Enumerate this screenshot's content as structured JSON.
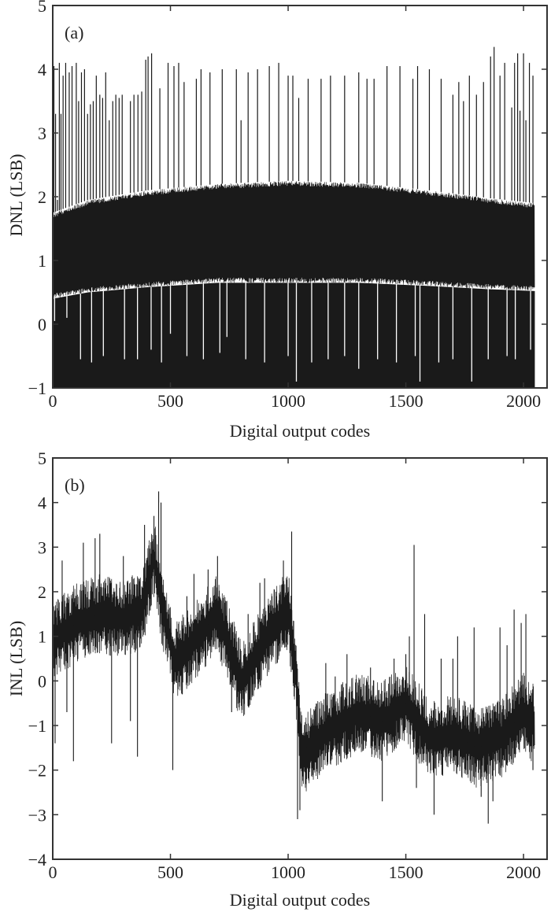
{
  "chart_data": [
    {
      "id": "a",
      "type": "line",
      "panel_label": "(a)",
      "title": "",
      "xlabel": "Digital output codes",
      "ylabel": "DNL (LSB)",
      "xlim": [
        0,
        2100
      ],
      "ylim": [
        -1,
        5
      ],
      "xticks": [
        0,
        500,
        1000,
        1500,
        2000
      ],
      "yticks": [
        -1,
        0,
        1,
        2,
        3,
        4,
        5
      ],
      "grid": false,
      "legend": "none",
      "series": [
        {
          "n_codes": 2048,
          "dense_band": {
            "x": [
              0,
              150,
              400,
              700,
              1000,
              1300,
              1600,
              1850,
              2048
            ],
            "upper": [
              1.75,
              1.95,
              2.1,
              2.2,
              2.25,
              2.22,
              2.1,
              1.98,
              1.9
            ],
            "lower": [
              0.4,
              0.5,
              0.58,
              0.65,
              0.65,
              0.65,
              0.6,
              0.55,
              0.52
            ]
          },
          "spikes_up": [
            [
              5,
              4.05
            ],
            [
              12,
              3.3
            ],
            [
              20,
              1.95
            ],
            [
              28,
              4.1
            ],
            [
              35,
              3.3
            ],
            [
              44,
              3.9
            ],
            [
              55,
              4.1
            ],
            [
              70,
              3.95
            ],
            [
              82,
              4.05
            ],
            [
              100,
              4.1
            ],
            [
              110,
              3.5
            ],
            [
              122,
              3.95
            ],
            [
              135,
              4.0
            ],
            [
              148,
              3.3
            ],
            [
              160,
              3.45
            ],
            [
              172,
              3.5
            ],
            [
              185,
              3.9
            ],
            [
              200,
              3.6
            ],
            [
              212,
              3.55
            ],
            [
              225,
              3.95
            ],
            [
              240,
              3.2
            ],
            [
              255,
              3.5
            ],
            [
              268,
              3.6
            ],
            [
              282,
              3.55
            ],
            [
              295,
              3.6
            ],
            [
              330,
              3.5
            ],
            [
              345,
              3.6
            ],
            [
              362,
              3.6
            ],
            [
              378,
              3.65
            ],
            [
              395,
              4.15
            ],
            [
              405,
              4.2
            ],
            [
              420,
              4.25
            ],
            [
              455,
              3.7
            ],
            [
              490,
              4.1
            ],
            [
              515,
              4.05
            ],
            [
              535,
              4.1
            ],
            [
              558,
              3.8
            ],
            [
              610,
              3.85
            ],
            [
              630,
              4.0
            ],
            [
              668,
              3.95
            ],
            [
              720,
              4.0
            ],
            [
              780,
              4.0
            ],
            [
              800,
              3.2
            ],
            [
              830,
              3.95
            ],
            [
              870,
              4.0
            ],
            [
              920,
              4.05
            ],
            [
              960,
              4.1
            ],
            [
              1000,
              3.9
            ],
            [
              1020,
              3.9
            ],
            [
              1045,
              3.55
            ],
            [
              1085,
              3.85
            ],
            [
              1140,
              3.85
            ],
            [
              1180,
              3.9
            ],
            [
              1240,
              3.9
            ],
            [
              1300,
              3.95
            ],
            [
              1335,
              3.85
            ],
            [
              1365,
              3.85
            ],
            [
              1420,
              4.05
            ],
            [
              1475,
              4.05
            ],
            [
              1530,
              3.85
            ],
            [
              1550,
              4.05
            ],
            [
              1600,
              4.0
            ],
            [
              1650,
              3.85
            ],
            [
              1700,
              3.6
            ],
            [
              1725,
              3.8
            ],
            [
              1745,
              3.5
            ],
            [
              1770,
              3.9
            ],
            [
              1800,
              3.6
            ],
            [
              1830,
              3.8
            ],
            [
              1860,
              4.2
            ],
            [
              1875,
              4.35
            ],
            [
              1900,
              3.9
            ],
            [
              1920,
              4.1
            ],
            [
              1950,
              3.4
            ],
            [
              1962,
              4.1
            ],
            [
              1975,
              4.25
            ],
            [
              1985,
              3.35
            ],
            [
              2000,
              4.25
            ],
            [
              2010,
              3.2
            ],
            [
              2025,
              4.1
            ],
            [
              2040,
              3.9
            ]
          ],
          "spikes_down": [
            [
              8,
              0.05
            ],
            [
              60,
              0.1
            ],
            [
              118,
              -0.55
            ],
            [
              165,
              -0.6
            ],
            [
              215,
              -0.5
            ],
            [
              305,
              -0.55
            ],
            [
              360,
              -0.55
            ],
            [
              418,
              -0.4
            ],
            [
              462,
              -0.6
            ],
            [
              500,
              -0.15
            ],
            [
              570,
              -0.5
            ],
            [
              640,
              -0.55
            ],
            [
              710,
              -0.45
            ],
            [
              740,
              -0.2
            ],
            [
              820,
              -0.55
            ],
            [
              900,
              -0.6
            ],
            [
              1000,
              -0.5
            ],
            [
              1035,
              -0.9
            ],
            [
              1100,
              -0.6
            ],
            [
              1170,
              -0.55
            ],
            [
              1240,
              -0.5
            ],
            [
              1300,
              -0.7
            ],
            [
              1380,
              -0.55
            ],
            [
              1460,
              -0.6
            ],
            [
              1540,
              -0.5
            ],
            [
              1560,
              -0.9
            ],
            [
              1640,
              -0.6
            ],
            [
              1700,
              -0.55
            ],
            [
              1780,
              -0.9
            ],
            [
              1850,
              -0.55
            ],
            [
              1930,
              -0.5
            ],
            [
              1965,
              -0.55
            ],
            [
              2030,
              -0.4
            ]
          ]
        }
      ]
    },
    {
      "id": "b",
      "type": "line",
      "panel_label": "(b)",
      "title": "",
      "xlabel": "Digital output codes",
      "ylabel": "INL (LSB)",
      "xlim": [
        0,
        2100
      ],
      "ylim": [
        -4,
        5
      ],
      "xticks": [
        0,
        500,
        1000,
        1500,
        2000
      ],
      "yticks": [
        -4,
        -3,
        -2,
        -1,
        0,
        1,
        2,
        3,
        4,
        5
      ],
      "grid": false,
      "legend": "none",
      "series": [
        {
          "n_codes": 2048,
          "trend": {
            "x": [
              0,
              100,
              200,
              300,
              380,
              430,
              460,
              520,
              600,
              700,
              760,
              800,
              900,
              1000,
              1030,
              1060,
              1150,
              1300,
              1400,
              1500,
              1600,
              1700,
              1800,
              1900,
              2000,
              2048
            ],
            "y": [
              0.9,
              1.3,
              1.5,
              1.4,
              1.6,
              2.8,
              1.8,
              0.4,
              0.9,
              1.5,
              0.6,
              0.0,
              0.9,
              1.6,
              0.3,
              -1.7,
              -1.2,
              -0.7,
              -0.9,
              -0.5,
              -1.3,
              -1.2,
              -1.5,
              -1.3,
              -0.7,
              -1.0
            ]
          },
          "half_band": 0.9,
          "spikes": [
            [
              10,
              -1.4
            ],
            [
              40,
              2.7
            ],
            [
              60,
              -0.7
            ],
            [
              88,
              -1.8
            ],
            [
              130,
              3.1
            ],
            [
              180,
              3.2
            ],
            [
              200,
              3.3
            ],
            [
              250,
              -1.4
            ],
            [
              300,
              2.8
            ],
            [
              330,
              -0.9
            ],
            [
              360,
              -1.7
            ],
            [
              390,
              3.5
            ],
            [
              430,
              3.7
            ],
            [
              450,
              4.25
            ],
            [
              460,
              4.0
            ],
            [
              510,
              -2.0
            ],
            [
              550,
              -0.3
            ],
            [
              570,
              1.9
            ],
            [
              600,
              2.4
            ],
            [
              660,
              2.5
            ],
            [
              700,
              2.8
            ],
            [
              760,
              -0.7
            ],
            [
              800,
              0.3
            ],
            [
              830,
              1.5
            ],
            [
              880,
              2.2
            ],
            [
              900,
              2.3
            ],
            [
              950,
              1.9
            ],
            [
              980,
              2.7
            ],
            [
              1015,
              3.35
            ],
            [
              1040,
              -3.1
            ],
            [
              1050,
              -2.9
            ],
            [
              1080,
              -1.5
            ],
            [
              1110,
              -2.0
            ],
            [
              1160,
              0.4
            ],
            [
              1200,
              0.1
            ],
            [
              1250,
              0.6
            ],
            [
              1300,
              -0.1
            ],
            [
              1350,
              0.3
            ],
            [
              1400,
              -2.7
            ],
            [
              1450,
              0.5
            ],
            [
              1500,
              0.6
            ],
            [
              1515,
              1.0
            ],
            [
              1535,
              3.05
            ],
            [
              1545,
              -2.4
            ],
            [
              1580,
              1.5
            ],
            [
              1620,
              -3.0
            ],
            [
              1650,
              0.5
            ],
            [
              1700,
              0.5
            ],
            [
              1720,
              1.0
            ],
            [
              1760,
              -0.8
            ],
            [
              1790,
              1.2
            ],
            [
              1820,
              -2.6
            ],
            [
              1850,
              -3.2
            ],
            [
              1870,
              -2.7
            ],
            [
              1900,
              1.2
            ],
            [
              1930,
              0.8
            ],
            [
              1960,
              1.6
            ],
            [
              1990,
              1.3
            ],
            [
              2010,
              1.5
            ],
            [
              2040,
              -2.0
            ]
          ]
        }
      ]
    }
  ]
}
